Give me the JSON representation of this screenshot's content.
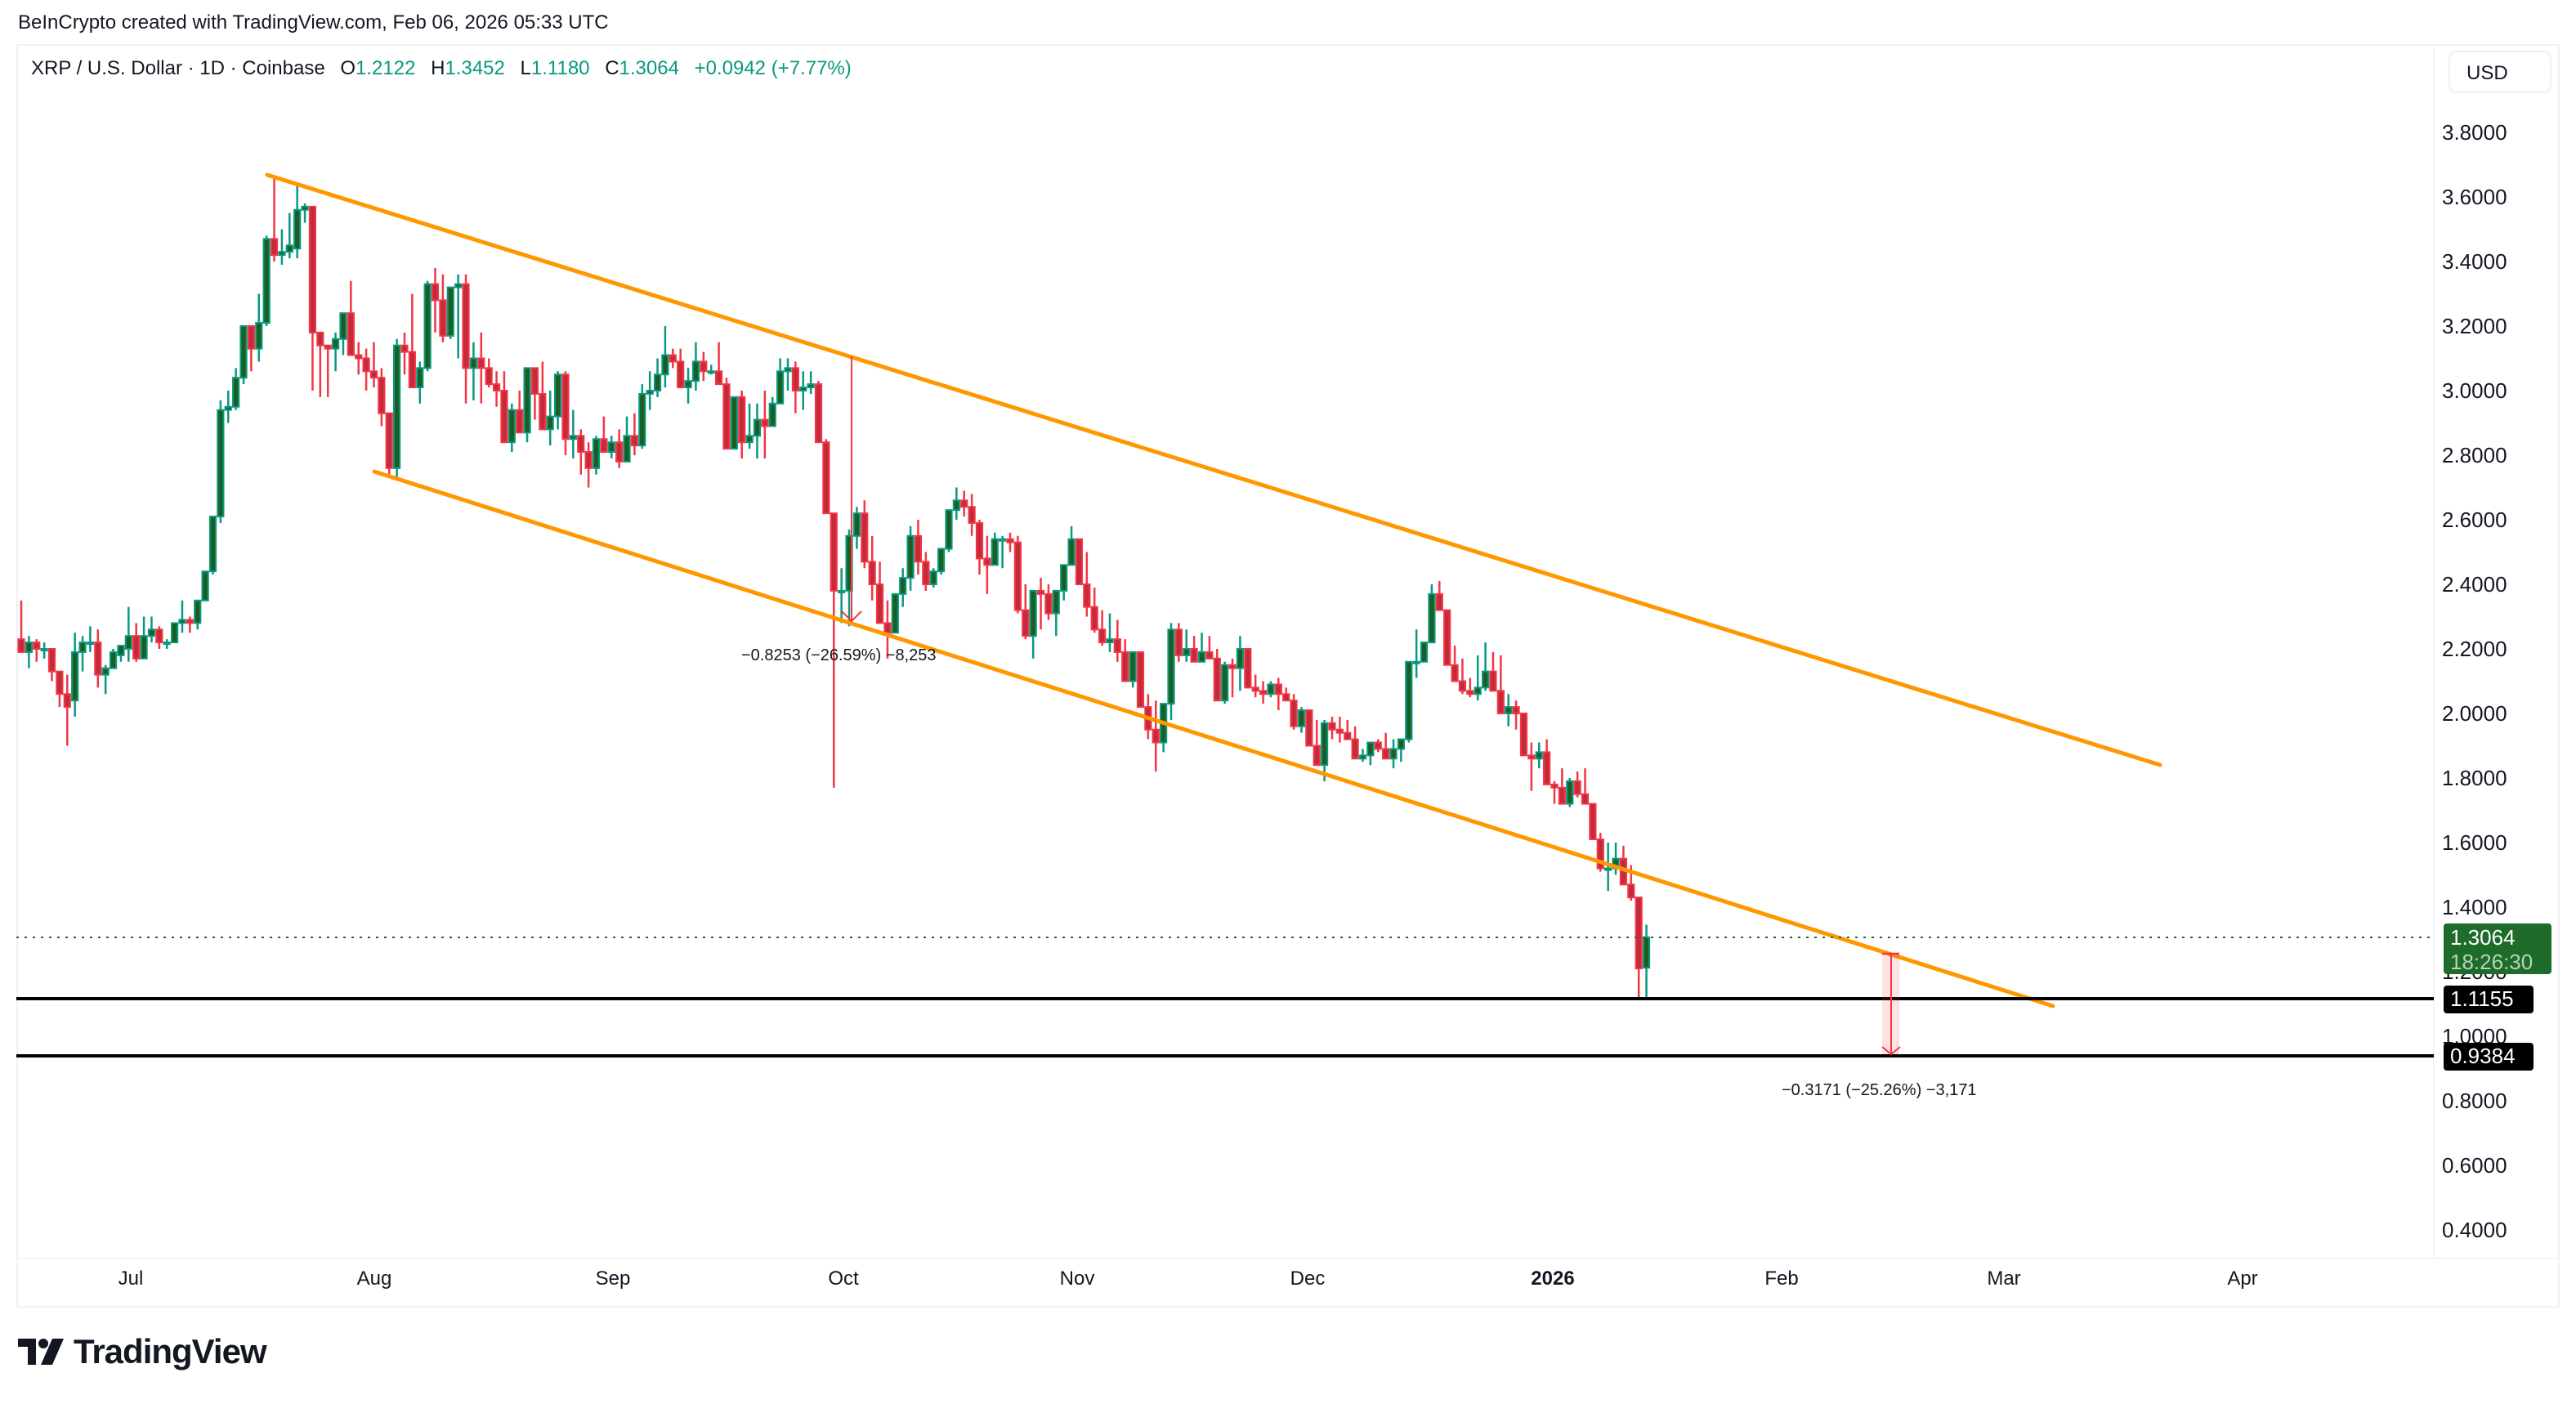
{
  "header": {
    "credit": "BeInCrypto created with TradingView.com, Feb 06, 2026 05:33 UTC"
  },
  "legend": {
    "symbol": "XRP / U.S. Dollar · 1D · Coinbase",
    "open_label": "O",
    "open": "1.2122",
    "high_label": "H",
    "high": "1.3452",
    "low_label": "L",
    "low": "1.1180",
    "close_label": "C",
    "close": "1.3064",
    "change": "+0.0942 (+7.77%)"
  },
  "currency_button": "USD",
  "price_axis": {
    "ticks": [
      "3.8000",
      "3.6000",
      "3.4000",
      "3.2000",
      "3.0000",
      "2.8000",
      "2.6000",
      "2.4000",
      "2.2000",
      "2.0000",
      "1.8000",
      "1.6000",
      "1.4000",
      "1.2000",
      "1.0000",
      "0.8000",
      "0.6000",
      "0.4000"
    ],
    "last_price": "1.3064",
    "countdown": "18:26:30",
    "level_1": "1.1155",
    "level_2": "0.9384"
  },
  "time_axis": {
    "ticks": [
      {
        "label": "Jul",
        "x": 160,
        "bold": false
      },
      {
        "label": "Aug",
        "x": 458,
        "bold": false
      },
      {
        "label": "Sep",
        "x": 750,
        "bold": false
      },
      {
        "label": "Oct",
        "x": 1032,
        "bold": false
      },
      {
        "label": "Nov",
        "x": 1318,
        "bold": false
      },
      {
        "label": "Dec",
        "x": 1600,
        "bold": false
      },
      {
        "label": "2026",
        "x": 1900,
        "bold": true
      },
      {
        "label": "Feb",
        "x": 2180,
        "bold": false
      },
      {
        "label": "Mar",
        "x": 2452,
        "bold": false
      },
      {
        "label": "Apr",
        "x": 2744,
        "bold": false
      }
    ]
  },
  "annotations": {
    "measure_1": "−0.8253 (−26.59%) −8,253",
    "measure_2": "−0.3171 (−25.26%) −3,171"
  },
  "colors": {
    "up": "#089981",
    "up_fill": "#1b5e20",
    "down": "#f23645",
    "down_fill": "#c62a3a",
    "channel": "#ff9800",
    "level": "#000000",
    "last_price_bg": "#1e6b2a"
  },
  "brand": "TradingView",
  "chart_data": {
    "type": "candlestick",
    "title": "XRP / U.S. Dollar · 1D · Coinbase",
    "xlabel": "",
    "ylabel": "USD",
    "ylim": [
      0.3,
      3.95
    ],
    "x_range": [
      "2025-06-22",
      "2026-04-15"
    ],
    "grid": false,
    "legend_position": "top-left",
    "last": {
      "open": 1.2122,
      "high": 1.3452,
      "low": 1.118,
      "close": 1.3064,
      "change": 0.0942,
      "change_pct": 7.77
    },
    "horizontal_levels": [
      1.1155,
      0.9384
    ],
    "channel": {
      "upper": {
        "from": {
          "date": "2025-07-18",
          "price": 3.66
        },
        "to": {
          "date": "2026-03-21",
          "price": 1.84
        }
      },
      "lower": {
        "from": {
          "date": "2025-07-31",
          "price": 2.74
        },
        "to": {
          "date": "2026-03-07",
          "price": 1.09
        }
      }
    },
    "measurements": [
      {
        "from_price": 3.1,
        "to_price": 2.27,
        "delta": -0.8253,
        "pct": -26.59,
        "label": "−0.8253 (−26.59%) −8,253"
      },
      {
        "from_price": 1.255,
        "to_price": 0.9384,
        "delta": -0.3171,
        "pct": -25.26,
        "label": "−0.3171 (−25.26%) −3,171"
      }
    ],
    "start_date": "2025-06-22",
    "ohlc": [
      [
        2.23,
        2.35,
        2.21,
        2.19
      ],
      [
        2.19,
        2.24,
        2.14,
        2.22
      ],
      [
        2.22,
        2.23,
        2.16,
        2.2
      ],
      [
        2.2,
        2.22,
        2.17,
        2.2
      ],
      [
        2.2,
        2.2,
        2.1,
        2.13
      ],
      [
        2.13,
        2.13,
        2.02,
        2.06
      ],
      [
        2.06,
        2.12,
        1.9,
        2.02
      ],
      [
        2.04,
        2.25,
        1.99,
        2.19
      ],
      [
        2.19,
        2.24,
        2.13,
        2.22
      ],
      [
        2.22,
        2.27,
        2.19,
        2.22
      ],
      [
        2.22,
        2.26,
        2.08,
        2.12
      ],
      [
        2.12,
        2.15,
        2.06,
        2.14
      ],
      [
        2.14,
        2.2,
        2.14,
        2.19
      ],
      [
        2.18,
        2.21,
        2.16,
        2.21
      ],
      [
        2.2,
        2.33,
        2.16,
        2.24
      ],
      [
        2.24,
        2.28,
        2.16,
        2.17
      ],
      [
        2.17,
        2.3,
        2.17,
        2.24
      ],
      [
        2.24,
        2.3,
        2.22,
        2.26
      ],
      [
        2.26,
        2.27,
        2.2,
        2.22
      ],
      [
        2.22,
        2.23,
        2.2,
        2.22
      ],
      [
        2.22,
        2.28,
        2.22,
        2.28
      ],
      [
        2.28,
        2.35,
        2.25,
        2.29
      ],
      [
        2.29,
        2.3,
        2.25,
        2.28
      ],
      [
        2.28,
        2.34,
        2.26,
        2.35
      ],
      [
        2.35,
        2.44,
        2.35,
        2.44
      ],
      [
        2.44,
        2.61,
        2.43,
        2.61
      ],
      [
        2.61,
        2.97,
        2.59,
        2.94
      ],
      [
        2.94,
        3.0,
        2.9,
        2.95
      ],
      [
        2.95,
        3.07,
        2.94,
        3.04
      ],
      [
        3.04,
        3.16,
        3.02,
        3.2
      ],
      [
        3.2,
        3.2,
        3.06,
        3.13
      ],
      [
        3.13,
        3.3,
        3.09,
        3.21
      ],
      [
        3.21,
        3.48,
        3.2,
        3.47
      ],
      [
        3.47,
        3.66,
        3.4,
        3.42
      ],
      [
        3.42,
        3.5,
        3.39,
        3.43
      ],
      [
        3.43,
        3.55,
        3.41,
        3.45
      ],
      [
        3.44,
        3.64,
        3.41,
        3.56
      ],
      [
        3.56,
        3.58,
        3.52,
        3.57
      ],
      [
        3.57,
        3.57,
        3.0,
        3.18
      ],
      [
        3.18,
        3.18,
        2.98,
        3.14
      ],
      [
        3.14,
        3.14,
        2.98,
        3.13
      ],
      [
        3.13,
        3.18,
        3.06,
        3.16
      ],
      [
        3.16,
        3.21,
        3.11,
        3.24
      ],
      [
        3.24,
        3.34,
        3.12,
        3.11
      ],
      [
        3.11,
        3.15,
        3.05,
        3.1
      ],
      [
        3.1,
        3.13,
        3.0,
        3.06
      ],
      [
        3.06,
        3.15,
        3.01,
        3.04
      ],
      [
        3.04,
        3.07,
        2.89,
        2.93
      ],
      [
        2.93,
        2.93,
        2.74,
        2.76
      ],
      [
        2.76,
        3.16,
        2.73,
        3.14
      ],
      [
        3.14,
        3.18,
        3.05,
        3.12
      ],
      [
        3.12,
        3.3,
        3.02,
        3.01
      ],
      [
        3.01,
        3.09,
        2.96,
        3.07
      ],
      [
        3.07,
        3.34,
        3.06,
        3.33
      ],
      [
        3.33,
        3.38,
        3.18,
        3.28
      ],
      [
        3.28,
        3.36,
        3.15,
        3.17
      ],
      [
        3.17,
        3.3,
        3.16,
        3.32
      ],
      [
        3.32,
        3.36,
        3.1,
        3.33
      ],
      [
        3.33,
        3.36,
        2.96,
        3.07
      ],
      [
        3.07,
        3.15,
        2.97,
        3.1
      ],
      [
        3.1,
        3.18,
        2.96,
        3.07
      ],
      [
        3.07,
        3.1,
        3.01,
        3.02
      ],
      [
        3.02,
        3.06,
        2.95,
        3.0
      ],
      [
        3.0,
        3.06,
        2.86,
        2.84
      ],
      [
        2.84,
        2.96,
        2.81,
        2.94
      ],
      [
        2.94,
        3.0,
        2.89,
        2.87
      ],
      [
        2.87,
        3.06,
        2.84,
        3.07
      ],
      [
        3.07,
        3.07,
        2.91,
        2.99
      ],
      [
        2.99,
        3.09,
        2.9,
        2.88
      ],
      [
        2.88,
        3.0,
        2.83,
        2.92
      ],
      [
        2.92,
        3.06,
        2.88,
        3.05
      ],
      [
        3.05,
        3.06,
        2.8,
        2.85
      ],
      [
        2.85,
        2.94,
        2.79,
        2.86
      ],
      [
        2.86,
        2.88,
        2.74,
        2.81
      ],
      [
        2.81,
        2.84,
        2.7,
        2.76
      ],
      [
        2.76,
        2.86,
        2.74,
        2.85
      ],
      [
        2.85,
        2.92,
        2.82,
        2.81
      ],
      [
        2.81,
        2.86,
        2.79,
        2.84
      ],
      [
        2.84,
        2.88,
        2.76,
        2.78
      ],
      [
        2.78,
        2.92,
        2.8,
        2.86
      ],
      [
        2.86,
        2.93,
        2.8,
        2.83
      ],
      [
        2.83,
        3.02,
        2.82,
        2.99
      ],
      [
        2.99,
        3.06,
        2.94,
        3.0
      ],
      [
        3.0,
        3.1,
        2.98,
        3.05
      ],
      [
        3.05,
        3.2,
        3.01,
        3.11
      ],
      [
        3.11,
        3.13,
        3.07,
        3.09
      ],
      [
        3.09,
        3.13,
        3.03,
        3.01
      ],
      [
        3.01,
        3.07,
        2.96,
        3.03
      ],
      [
        3.03,
        3.15,
        3.0,
        3.09
      ],
      [
        3.09,
        3.12,
        3.03,
        3.06
      ],
      [
        3.06,
        3.08,
        3.05,
        3.06
      ],
      [
        3.06,
        3.15,
        3.04,
        3.02
      ],
      [
        3.02,
        3.04,
        2.9,
        2.82
      ],
      [
        2.82,
        2.98,
        2.86,
        2.98
      ],
      [
        2.98,
        3.0,
        2.79,
        2.84
      ],
      [
        2.84,
        2.96,
        2.82,
        2.86
      ],
      [
        2.86,
        2.96,
        2.79,
        2.91
      ],
      [
        2.91,
        3.0,
        2.79,
        2.89
      ],
      [
        2.89,
        2.98,
        2.9,
        2.96
      ],
      [
        2.96,
        3.1,
        2.96,
        3.06
      ],
      [
        3.06,
        3.1,
        3.0,
        3.07
      ],
      [
        3.07,
        3.09,
        2.93,
        3.0
      ],
      [
        3.0,
        3.06,
        2.94,
        3.01
      ],
      [
        3.01,
        3.06,
        2.99,
        3.02
      ],
      [
        3.02,
        3.03,
        2.85,
        2.84
      ],
      [
        2.84,
        2.85,
        2.65,
        2.62
      ],
      [
        2.62,
        2.62,
        1.77,
        2.38
      ],
      [
        2.38,
        2.45,
        2.28,
        2.38
      ],
      [
        2.38,
        2.57,
        2.27,
        2.55
      ],
      [
        2.55,
        2.64,
        2.51,
        2.62
      ],
      [
        2.62,
        2.66,
        2.45,
        2.47
      ],
      [
        2.47,
        2.55,
        2.35,
        2.4
      ],
      [
        2.4,
        2.47,
        2.28,
        2.28
      ],
      [
        2.28,
        2.35,
        2.17,
        2.25
      ],
      [
        2.25,
        2.33,
        2.3,
        2.37
      ],
      [
        2.37,
        2.45,
        2.33,
        2.42
      ],
      [
        2.42,
        2.58,
        2.38,
        2.55
      ],
      [
        2.55,
        2.6,
        2.43,
        2.47
      ],
      [
        2.47,
        2.5,
        2.38,
        2.4
      ],
      [
        2.4,
        2.45,
        2.39,
        2.44
      ],
      [
        2.44,
        2.49,
        2.43,
        2.51
      ],
      [
        2.51,
        2.61,
        2.5,
        2.63
      ],
      [
        2.63,
        2.7,
        2.6,
        2.66
      ],
      [
        2.66,
        2.69,
        2.61,
        2.64
      ],
      [
        2.64,
        2.68,
        2.55,
        2.59
      ],
      [
        2.59,
        2.6,
        2.43,
        2.48
      ],
      [
        2.48,
        2.55,
        2.37,
        2.46
      ],
      [
        2.46,
        2.56,
        2.46,
        2.54
      ],
      [
        2.54,
        2.55,
        2.45,
        2.54
      ],
      [
        2.54,
        2.56,
        2.5,
        2.53
      ],
      [
        2.53,
        2.55,
        2.31,
        2.32
      ],
      [
        2.32,
        2.4,
        2.23,
        2.24
      ],
      [
        2.24,
        2.38,
        2.17,
        2.38
      ],
      [
        2.38,
        2.42,
        2.26,
        2.37
      ],
      [
        2.37,
        2.4,
        2.29,
        2.31
      ],
      [
        2.31,
        2.38,
        2.24,
        2.38
      ],
      [
        2.38,
        2.43,
        2.35,
        2.46
      ],
      [
        2.46,
        2.58,
        2.46,
        2.54
      ],
      [
        2.54,
        2.54,
        2.4,
        2.4
      ],
      [
        2.4,
        2.5,
        2.3,
        2.33
      ],
      [
        2.33,
        2.39,
        2.25,
        2.26
      ],
      [
        2.26,
        2.32,
        2.21,
        2.22
      ],
      [
        2.22,
        2.31,
        2.19,
        2.23
      ],
      [
        2.23,
        2.29,
        2.16,
        2.19
      ],
      [
        2.19,
        2.23,
        2.12,
        2.1
      ],
      [
        2.1,
        2.19,
        2.08,
        2.19
      ],
      [
        2.19,
        2.19,
        2.02,
        2.02
      ],
      [
        2.02,
        2.06,
        1.92,
        1.95
      ],
      [
        1.95,
        2.04,
        1.82,
        1.91
      ],
      [
        1.91,
        2.03,
        1.88,
        2.03
      ],
      [
        2.03,
        2.28,
        1.98,
        2.26
      ],
      [
        2.26,
        2.28,
        2.16,
        2.18
      ],
      [
        2.18,
        2.26,
        2.16,
        2.2
      ],
      [
        2.2,
        2.24,
        2.16,
        2.16
      ],
      [
        2.16,
        2.25,
        2.16,
        2.19
      ],
      [
        2.19,
        2.24,
        2.18,
        2.17
      ],
      [
        2.17,
        2.2,
        2.1,
        2.04
      ],
      [
        2.04,
        2.16,
        2.03,
        2.15
      ],
      [
        2.15,
        2.17,
        2.05,
        2.14
      ],
      [
        2.14,
        2.24,
        2.07,
        2.2
      ],
      [
        2.2,
        2.2,
        2.08,
        2.08
      ],
      [
        2.08,
        2.12,
        2.05,
        2.07
      ],
      [
        2.07,
        2.1,
        2.03,
        2.06
      ],
      [
        2.06,
        2.1,
        2.05,
        2.09
      ],
      [
        2.09,
        2.11,
        2.01,
        2.06
      ],
      [
        2.06,
        2.08,
        2.04,
        2.04
      ],
      [
        2.04,
        2.06,
        1.95,
        1.96
      ],
      [
        1.96,
        2.02,
        1.94,
        2.01
      ],
      [
        2.01,
        2.01,
        1.9,
        1.9
      ],
      [
        1.9,
        1.98,
        1.85,
        1.84
      ],
      [
        1.84,
        1.98,
        1.79,
        1.97
      ],
      [
        1.97,
        1.99,
        1.92,
        1.95
      ],
      [
        1.95,
        1.99,
        1.91,
        1.94
      ],
      [
        1.94,
        1.98,
        1.93,
        1.92
      ],
      [
        1.92,
        1.96,
        1.86,
        1.86
      ],
      [
        1.86,
        1.89,
        1.85,
        1.87
      ],
      [
        1.87,
        1.91,
        1.84,
        1.91
      ],
      [
        1.91,
        1.92,
        1.88,
        1.89
      ],
      [
        1.89,
        1.94,
        1.86,
        1.86
      ],
      [
        1.86,
        1.92,
        1.83,
        1.89
      ],
      [
        1.89,
        1.92,
        1.85,
        1.92
      ],
      [
        1.92,
        2.03,
        1.91,
        2.16
      ],
      [
        2.16,
        2.26,
        2.11,
        2.16
      ],
      [
        2.16,
        2.22,
        2.2,
        2.22
      ],
      [
        2.22,
        2.4,
        2.22,
        2.37
      ],
      [
        2.37,
        2.41,
        2.33,
        2.32
      ],
      [
        2.32,
        2.28,
        2.19,
        2.15
      ],
      [
        2.15,
        2.21,
        2.1,
        2.1
      ],
      [
        2.1,
        2.17,
        2.06,
        2.07
      ],
      [
        2.07,
        2.11,
        2.05,
        2.06
      ],
      [
        2.06,
        2.18,
        2.04,
        2.08
      ],
      [
        2.08,
        2.22,
        2.07,
        2.13
      ],
      [
        2.13,
        2.19,
        2.08,
        2.07
      ],
      [
        2.07,
        2.18,
        2.0,
        2.0
      ],
      [
        2.0,
        2.06,
        1.96,
        2.02
      ],
      [
        2.02,
        2.04,
        1.95,
        2.0
      ],
      [
        2.0,
        2.0,
        1.91,
        1.87
      ],
      [
        1.87,
        1.91,
        1.76,
        1.86
      ],
      [
        1.86,
        1.91,
        1.83,
        1.88
      ],
      [
        1.88,
        1.92,
        1.78,
        1.78
      ],
      [
        1.78,
        1.79,
        1.72,
        1.77
      ],
      [
        1.77,
        1.83,
        1.72,
        1.72
      ],
      [
        1.72,
        1.8,
        1.71,
        1.79
      ],
      [
        1.79,
        1.82,
        1.74,
        1.75
      ],
      [
        1.75,
        1.83,
        1.74,
        1.72
      ],
      [
        1.72,
        1.72,
        1.61,
        1.61
      ],
      [
        1.61,
        1.63,
        1.51,
        1.52
      ],
      [
        1.52,
        1.6,
        1.45,
        1.52
      ],
      [
        1.52,
        1.6,
        1.5,
        1.55
      ],
      [
        1.55,
        1.59,
        1.49,
        1.47
      ],
      [
        1.47,
        1.53,
        1.42,
        1.43
      ],
      [
        1.43,
        1.43,
        1.12,
        1.21
      ],
      [
        1.2122,
        1.3452,
        1.118,
        1.3064
      ]
    ]
  }
}
